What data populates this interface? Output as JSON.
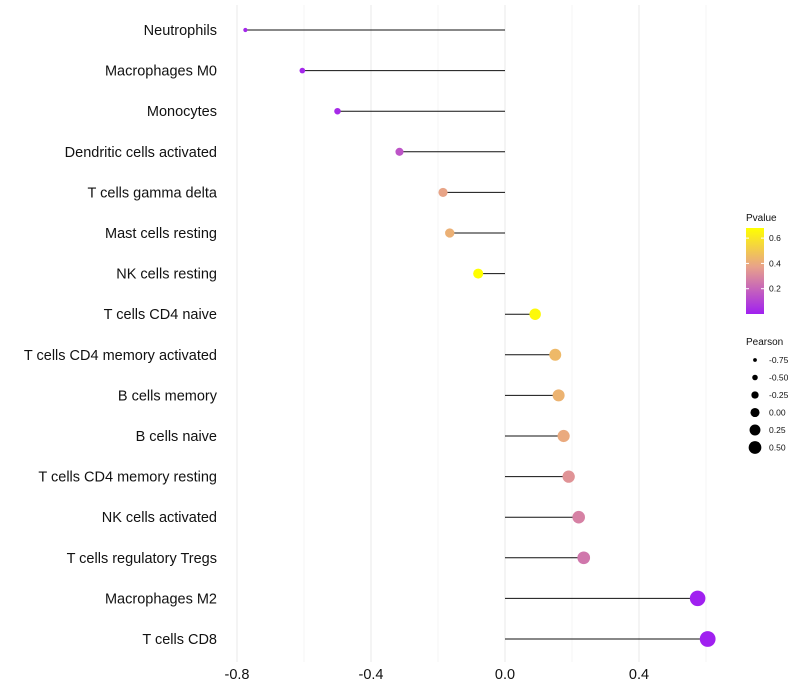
{
  "chart_data": {
    "type": "lollipop",
    "title": "",
    "xlabel": "",
    "ylabel": "",
    "xlim": [
      -0.8,
      0.65
    ],
    "x_ticks": [
      -0.8,
      -0.4,
      0.0,
      0.4
    ],
    "x_tick_labels": [
      "-0.8",
      "-0.4",
      "0.0",
      "0.4"
    ],
    "grid": true,
    "categories": [
      "Neutrophils",
      "Macrophages M0",
      "Monocytes",
      "Dendritic cells activated",
      "T cells gamma delta",
      "Mast cells resting",
      "NK cells resting",
      "T cells CD4 naive",
      "T cells CD4 memory activated",
      "B cells memory",
      "B cells naive",
      "T cells CD4 memory resting",
      "NK cells activated",
      "T cells regulatory  Tregs ",
      "Macrophages M2",
      "T cells CD8"
    ],
    "pearson": [
      -0.775,
      -0.605,
      -0.5,
      -0.315,
      -0.185,
      -0.165,
      -0.08,
      0.09,
      0.15,
      0.16,
      0.175,
      0.19,
      0.22,
      0.235,
      0.575,
      0.605
    ],
    "pvalue": [
      0.02,
      0.02,
      0.03,
      0.15,
      0.38,
      0.42,
      0.68,
      0.66,
      0.45,
      0.43,
      0.4,
      0.33,
      0.28,
      0.25,
      0.0,
      0.0
    ],
    "color_legend": {
      "title": "Pvalue",
      "ticks": [
        0.2,
        0.4,
        0.6
      ],
      "tick_labels": [
        "0.2",
        "0.4",
        "0.6"
      ],
      "range": [
        0.0,
        0.68
      ],
      "low_color": "#A020F0",
      "mid_color": "#E8A28A",
      "high_color": "#FFFF00"
    },
    "size_legend": {
      "title": "Pearson",
      "values": [
        -0.75,
        -0.5,
        -0.25,
        0.0,
        0.25,
        0.5
      ],
      "labels": [
        "-0.75",
        "-0.50",
        "-0.25",
        "0.00",
        "0.25",
        "0.50"
      ]
    }
  }
}
